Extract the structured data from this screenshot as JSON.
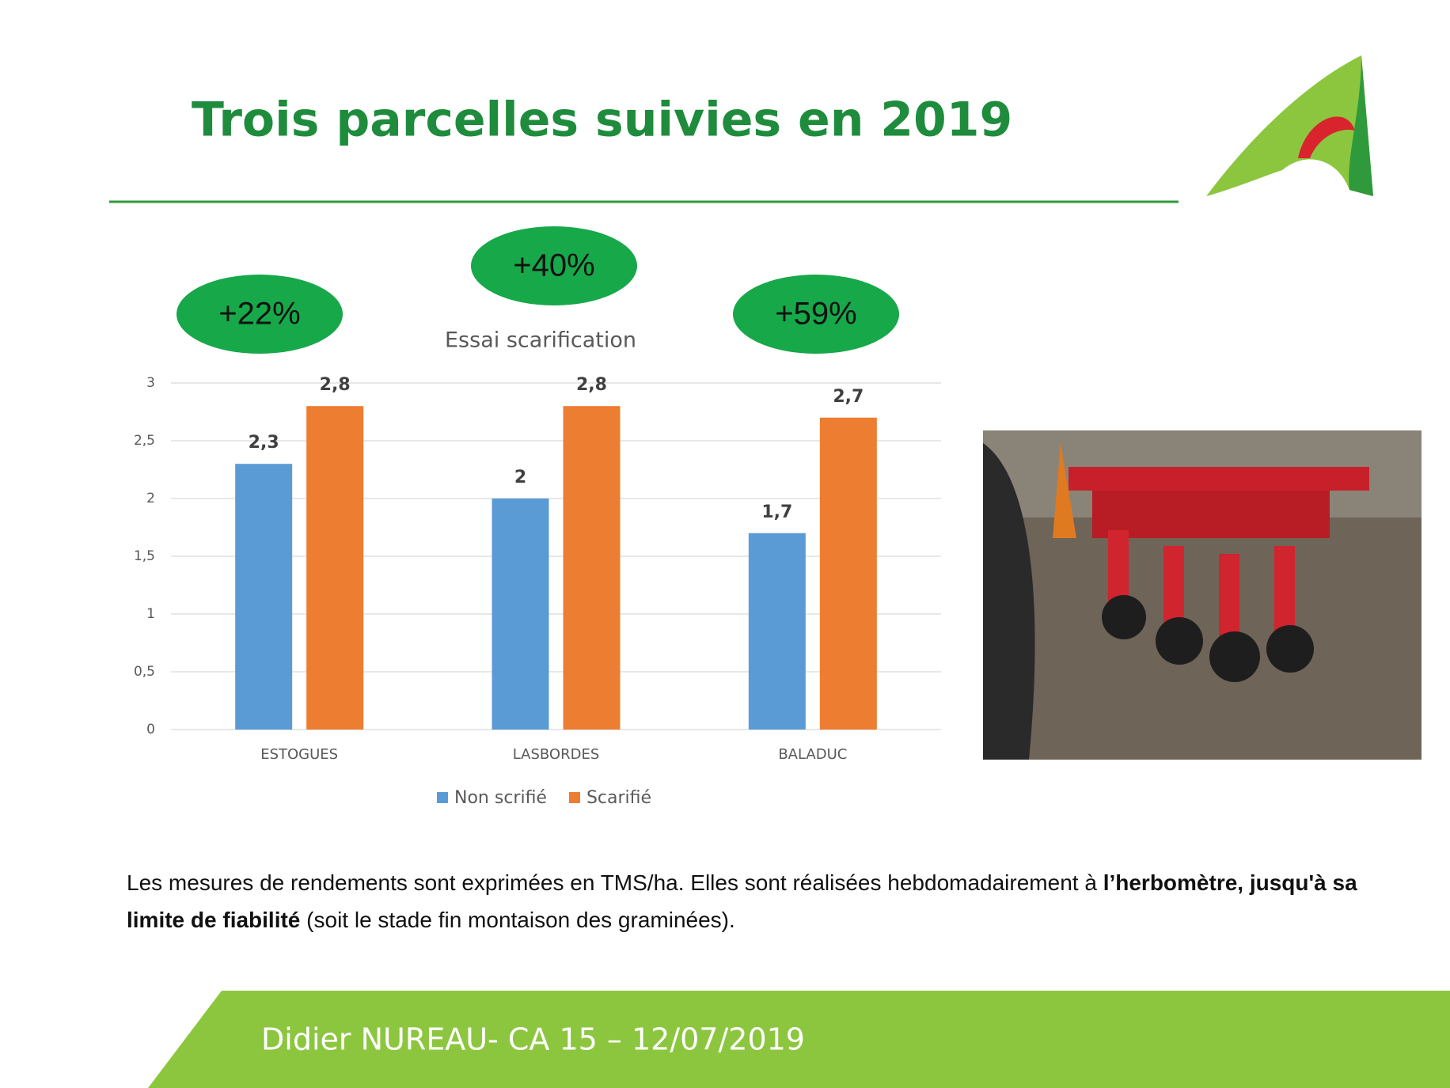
{
  "title": "Trois parcelles suivies en 2019",
  "annotations": [
    "+22%",
    "+40%",
    "+59%"
  ],
  "paragraph": [
    {
      "text": "Les mesures de rendements sont exprimées en TMS/ha. Elles sont réalisées hebdomadairement à ",
      "bold": false
    },
    {
      "text": "l’herbomètre, jusqu'à sa limite de fiabilité",
      "bold": true
    },
    {
      "text": " (soit le stade fin montaison des graminées).",
      "bold": false
    }
  ],
  "footer": "Didier NUREAU- CA 15 – 12/07/2019",
  "chart_data": {
    "type": "bar",
    "title": "Essai scarification",
    "categories": [
      "ESTOGUES",
      "LASBORDES",
      "BALADUC"
    ],
    "series": [
      {
        "name": "Non scrifié",
        "color": "#5b9bd5",
        "values": [
          2.3,
          2,
          1.7
        ],
        "value_labels": [
          "2,3",
          "2",
          "1,7"
        ]
      },
      {
        "name": "Scarifié",
        "color": "#ed7d31",
        "values": [
          2.8,
          2.8,
          2.7
        ],
        "value_labels": [
          "2,8",
          "2,8",
          "2,7"
        ]
      }
    ],
    "ylim": [
      0,
      3
    ],
    "yticks": [
      0,
      {
        "value": 0.5,
        "label": "0,5"
      },
      1,
      {
        "value": 1.5,
        "label": "1,5"
      },
      2,
      {
        "value": 2.5,
        "label": "2,5"
      },
      3
    ],
    "grid": true,
    "legend": "bottom"
  }
}
